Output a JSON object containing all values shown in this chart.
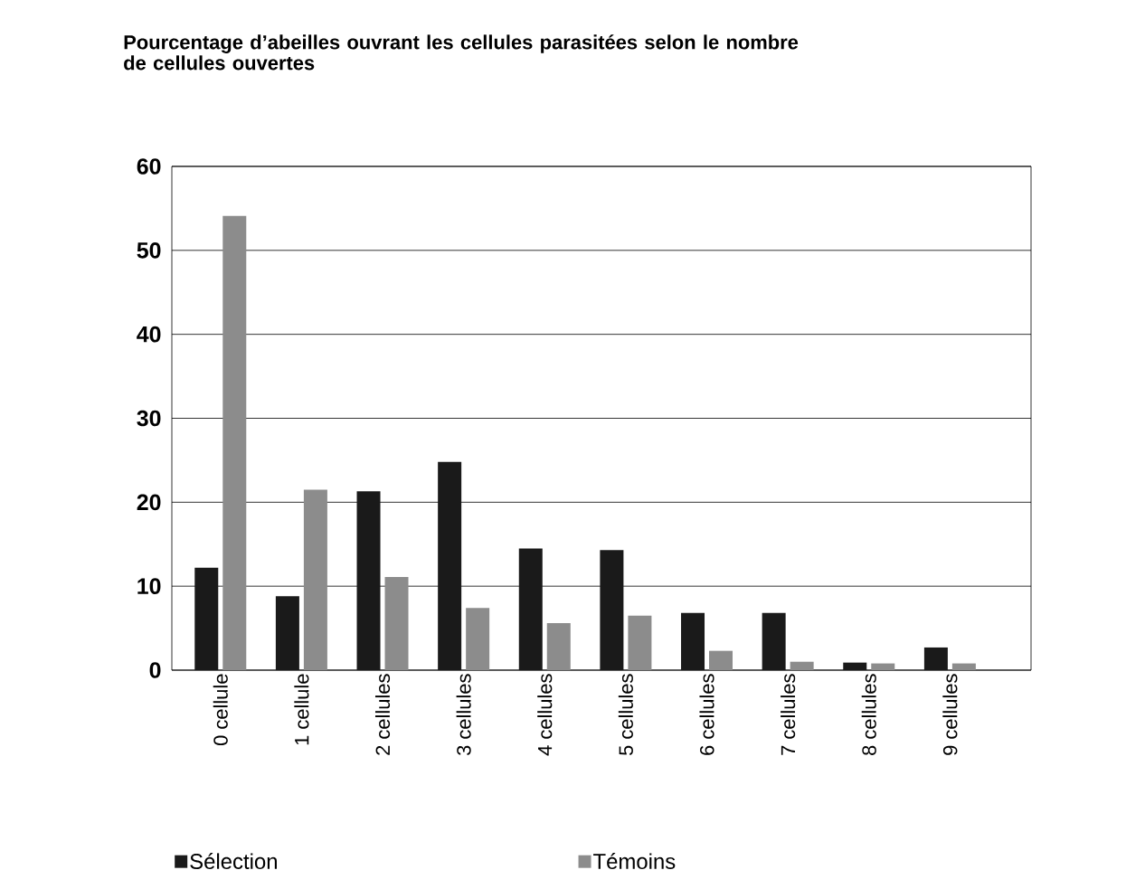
{
  "chart_data": {
    "type": "bar",
    "title": "Pourcentage d’abeilles ouvrant les cellules parasitées selon le nombre de cellules ouvertes",
    "categories": [
      "0 cellule",
      "1 cellule",
      "2 cellules",
      "3 cellules",
      "4 cellules",
      "5 cellules",
      "6 cellules",
      "7 cellules",
      "8 cellules",
      "9 cellules"
    ],
    "series": [
      {
        "name": "Sélection",
        "color": "#1a1a1a",
        "values": [
          12.2,
          8.8,
          21.3,
          24.8,
          14.5,
          14.3,
          6.8,
          6.8,
          0.9,
          2.7
        ]
      },
      {
        "name": "Témoins",
        "color": "#8c8c8c",
        "values": [
          54.1,
          21.5,
          11.1,
          7.4,
          5.6,
          6.5,
          2.3,
          1.0,
          0.8,
          0.8
        ]
      }
    ],
    "ylim": [
      0,
      60
    ],
    "yticks": [
      0,
      10,
      20,
      30,
      40,
      50,
      60
    ],
    "grid": "y",
    "legend": "bottom"
  }
}
